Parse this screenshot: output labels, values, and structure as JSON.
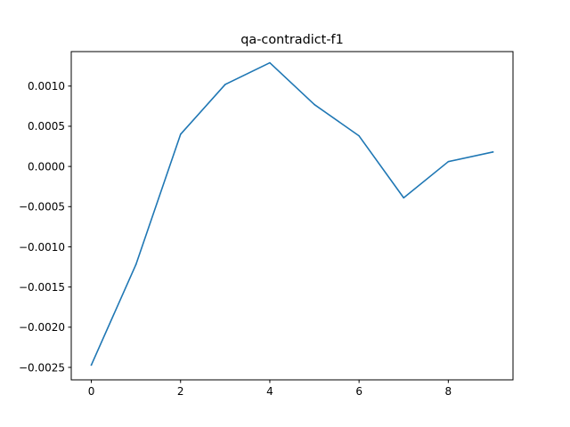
{
  "chart_data": {
    "type": "line",
    "title": "qa-contradict-f1",
    "xlabel": "",
    "ylabel": "",
    "xlim": [
      -0.45,
      9.45
    ],
    "ylim": [
      -0.002655,
      0.001429
    ],
    "x_ticks": [
      0,
      2,
      4,
      6,
      8
    ],
    "x_tick_labels": [
      "0",
      "2",
      "4",
      "6",
      "8"
    ],
    "y_ticks": [
      0.001,
      0.0005,
      0.0,
      -0.0005,
      -0.001,
      -0.0015,
      -0.002,
      -0.0025
    ],
    "y_tick_labels": [
      "0.0010",
      "0.0005",
      "0.0000",
      "−0.0005",
      "−0.0010",
      "−0.0015",
      "−0.0020",
      "−0.0025"
    ],
    "grid": false,
    "legend": "none",
    "series": [
      {
        "color": "#1f77b4",
        "x": [
          0,
          1,
          2,
          3,
          4,
          5,
          6,
          7,
          8,
          9
        ],
        "values": [
          -0.00247,
          -0.00122,
          0.0004,
          0.00102,
          0.00129,
          0.00077,
          0.00038,
          -0.00039,
          6e-05,
          0.00018
        ]
      }
    ]
  }
}
